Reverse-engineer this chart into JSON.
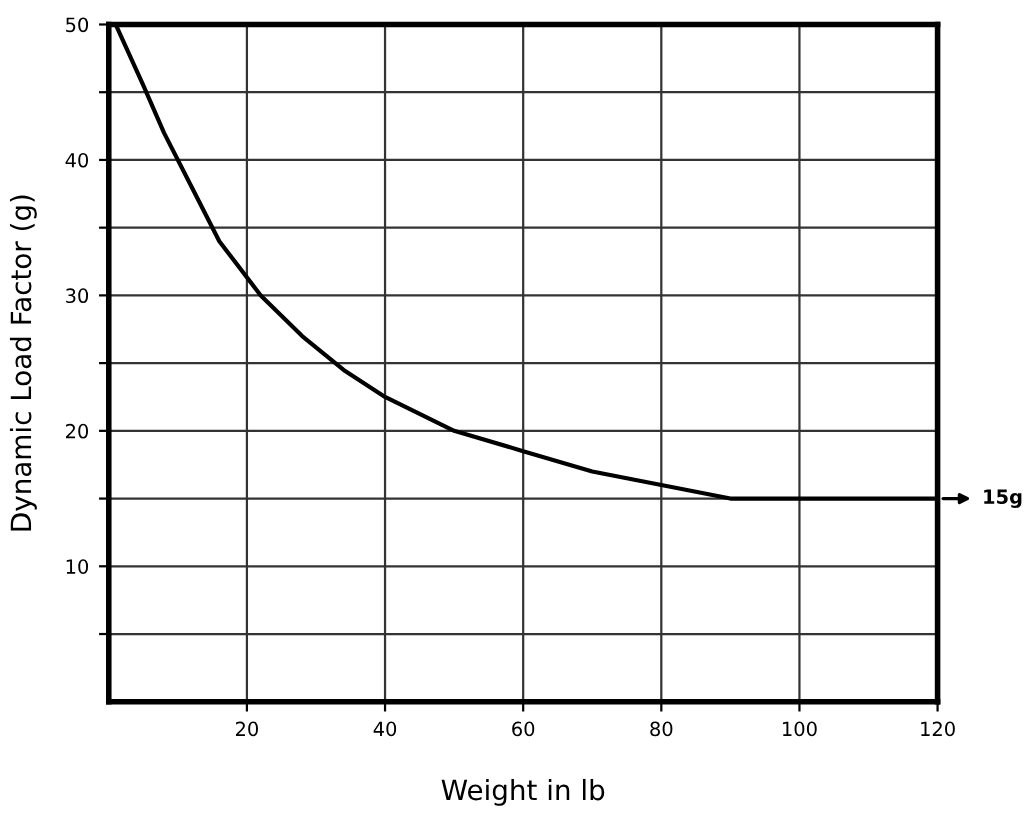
{
  "chart_data": {
    "type": "line",
    "xlabel": "Weight in lb",
    "ylabel": "Dynamic Load Factor (g)",
    "x": [
      1,
      5,
      8,
      12,
      16,
      22,
      28,
      34,
      40,
      50,
      60,
      70,
      80,
      90,
      120
    ],
    "series": [
      {
        "color": "#000000",
        "values": [
          50,
          45.5,
          42,
          38,
          34,
          30,
          27,
          24.5,
          22.5,
          20,
          18.5,
          17,
          16,
          15,
          15
        ]
      }
    ],
    "xlim": [
      0,
      120
    ],
    "xticks": [
      20,
      40,
      60,
      80,
      100,
      120
    ],
    "ylim": [
      0,
      50
    ],
    "yticks": [
      {
        "value": 5,
        "label": null
      },
      10,
      {
        "value": 15,
        "label": null
      },
      20,
      {
        "value": 25,
        "label": null
      },
      30,
      {
        "value": 35,
        "label": null
      },
      40,
      {
        "value": 45,
        "label": null
      },
      50
    ],
    "grid": true,
    "marker": "none",
    "line_style": "solid",
    "annotations": [
      {
        "text": "15g",
        "x": 120,
        "y": 15
      }
    ]
  }
}
